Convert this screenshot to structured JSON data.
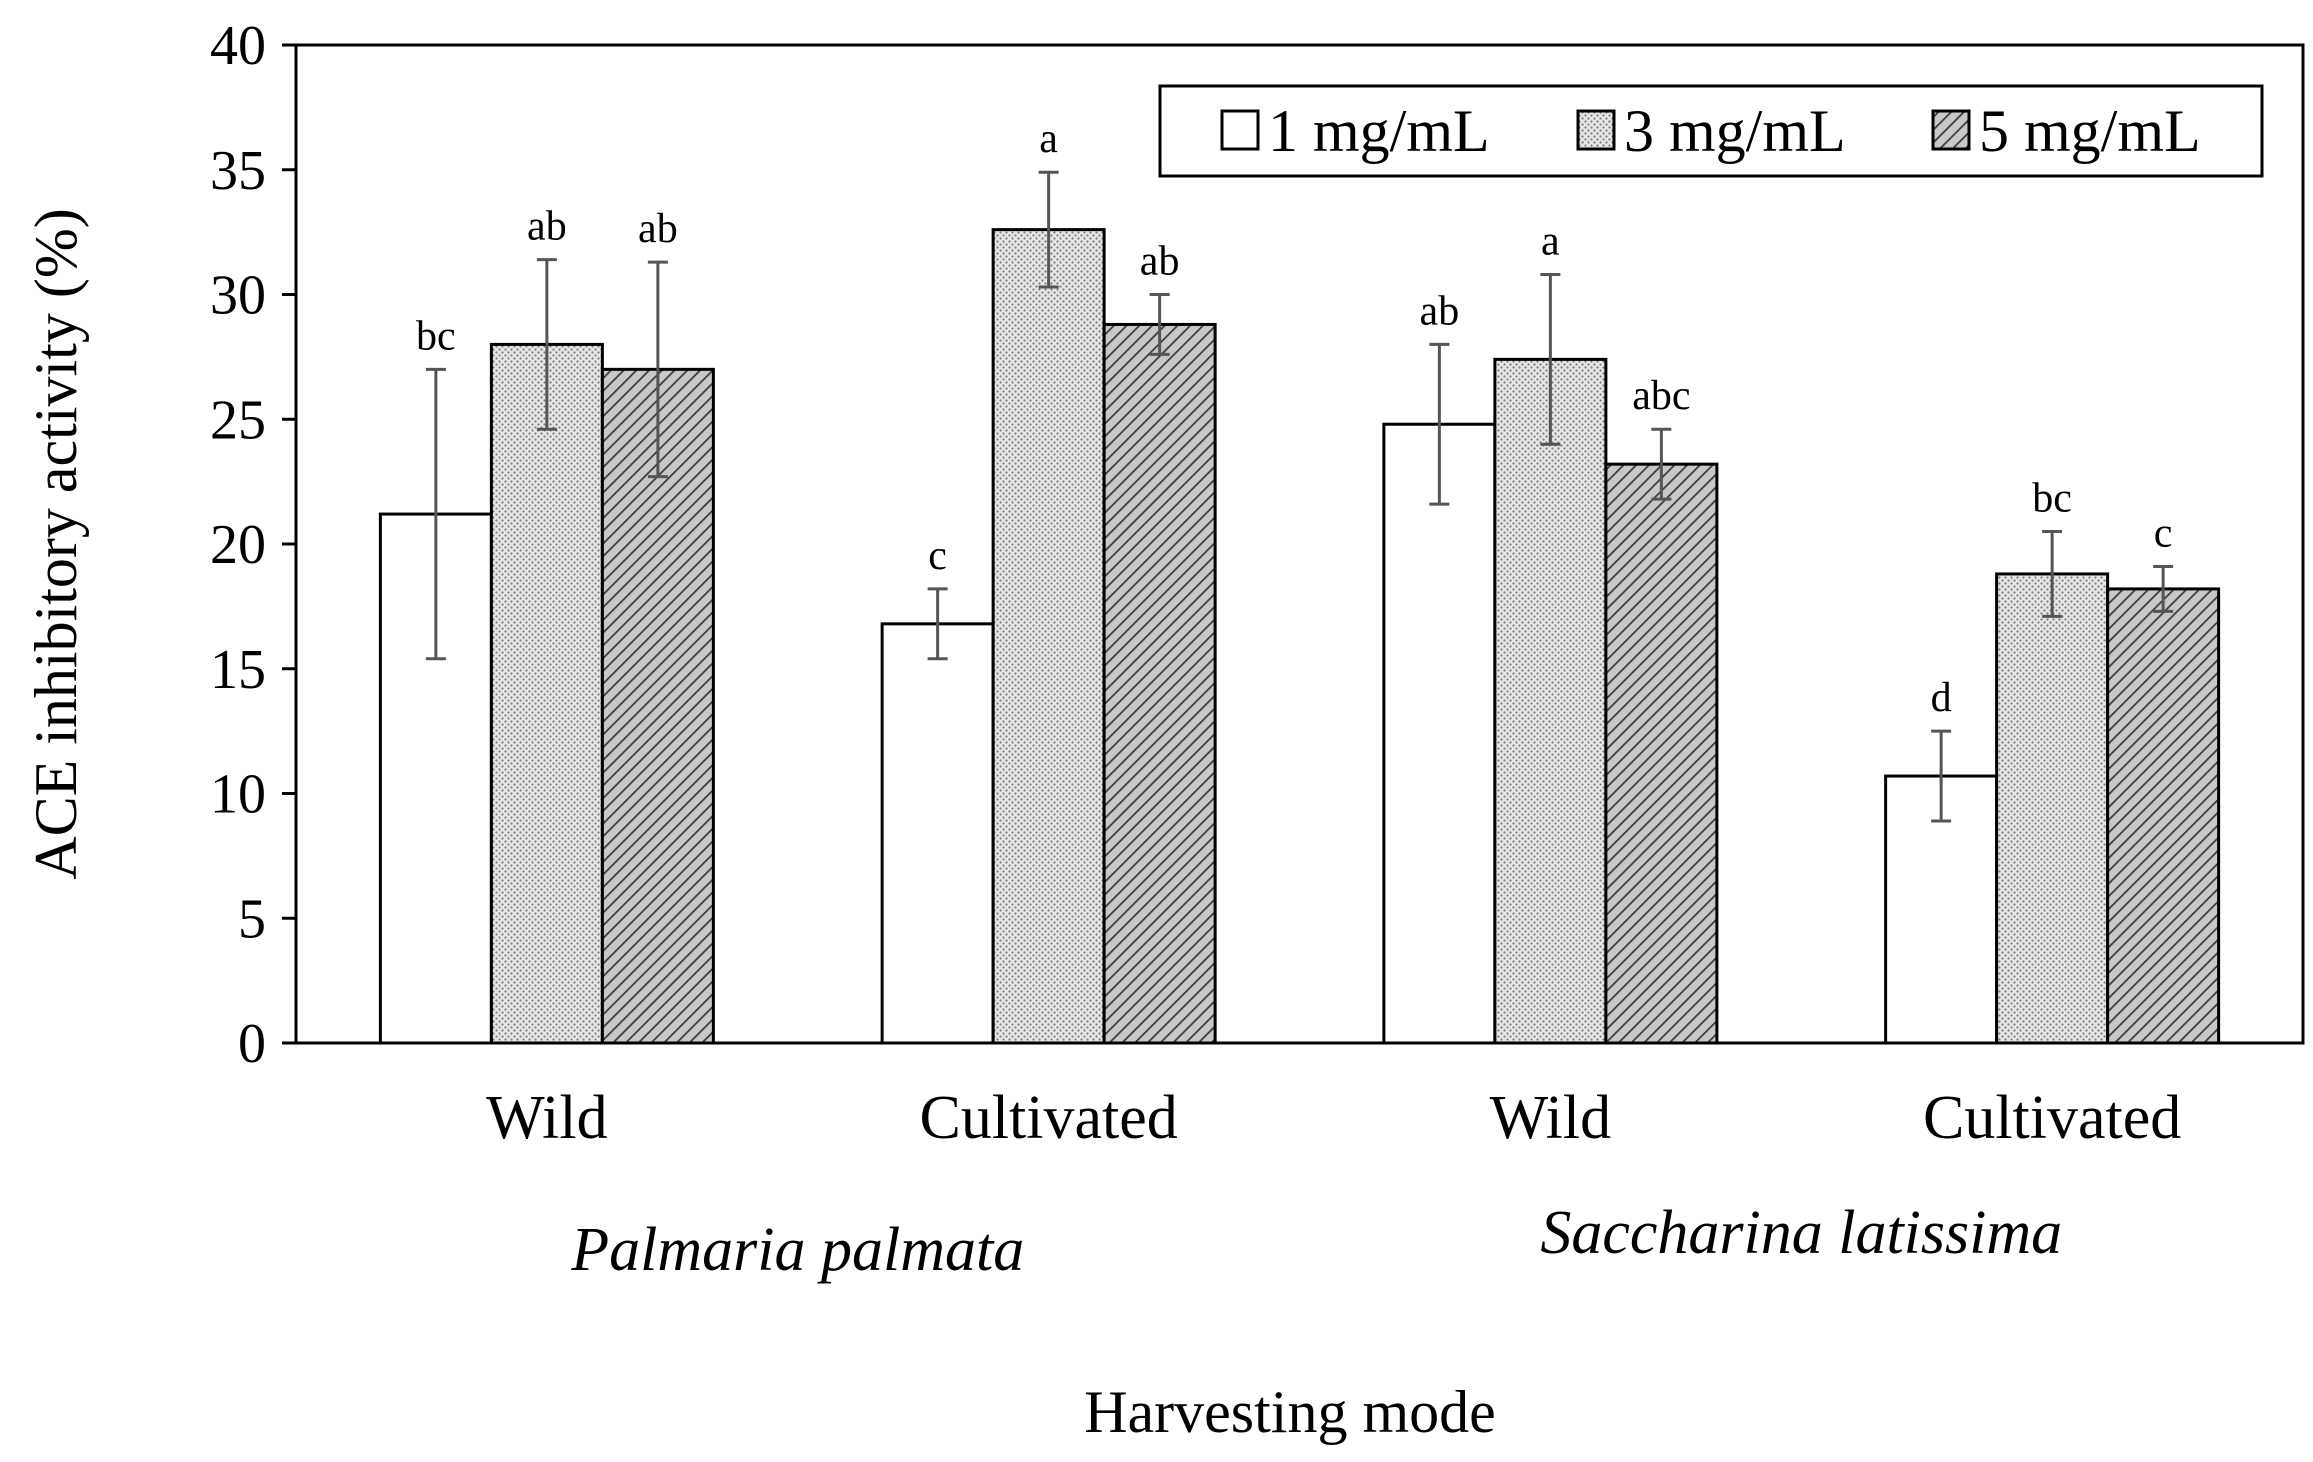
{
  "chart_data": {
    "type": "bar",
    "title": "",
    "xlabel": "Harvesting mode",
    "ylabel": "ACE inhibitory activity (%)",
    "ylim": [
      0,
      40
    ],
    "yticks": [
      0,
      5,
      10,
      15,
      20,
      25,
      30,
      35,
      40
    ],
    "grid": false,
    "legend_position": "top-right",
    "categories": [
      "Wild",
      "Cultivated",
      "Wild",
      "Cultivated"
    ],
    "groups": [
      {
        "label": "Palmaria palmata",
        "categories": [
          0,
          1
        ]
      },
      {
        "label": "Saccharina latissima",
        "categories": [
          2,
          3
        ]
      }
    ],
    "series": [
      {
        "name": "1 mg/mL",
        "pattern": "white",
        "values": [
          21.2,
          16.8,
          24.8,
          10.7
        ],
        "errors": [
          5.8,
          1.4,
          3.2,
          1.8
        ],
        "letters": [
          "bc",
          "c",
          "ab",
          "d"
        ]
      },
      {
        "name": "3 mg/mL",
        "pattern": "dots",
        "values": [
          28.0,
          32.6,
          27.4,
          18.8
        ],
        "errors": [
          3.4,
          2.3,
          3.4,
          1.7
        ],
        "letters": [
          "ab",
          "a",
          "a",
          "bc"
        ]
      },
      {
        "name": "5 mg/mL",
        "pattern": "hatch",
        "values": [
          27.0,
          28.8,
          23.2,
          18.2
        ],
        "errors": [
          4.3,
          1.2,
          1.4,
          0.9
        ],
        "letters": [
          "ab",
          "ab",
          "abc",
          "c"
        ]
      }
    ]
  }
}
